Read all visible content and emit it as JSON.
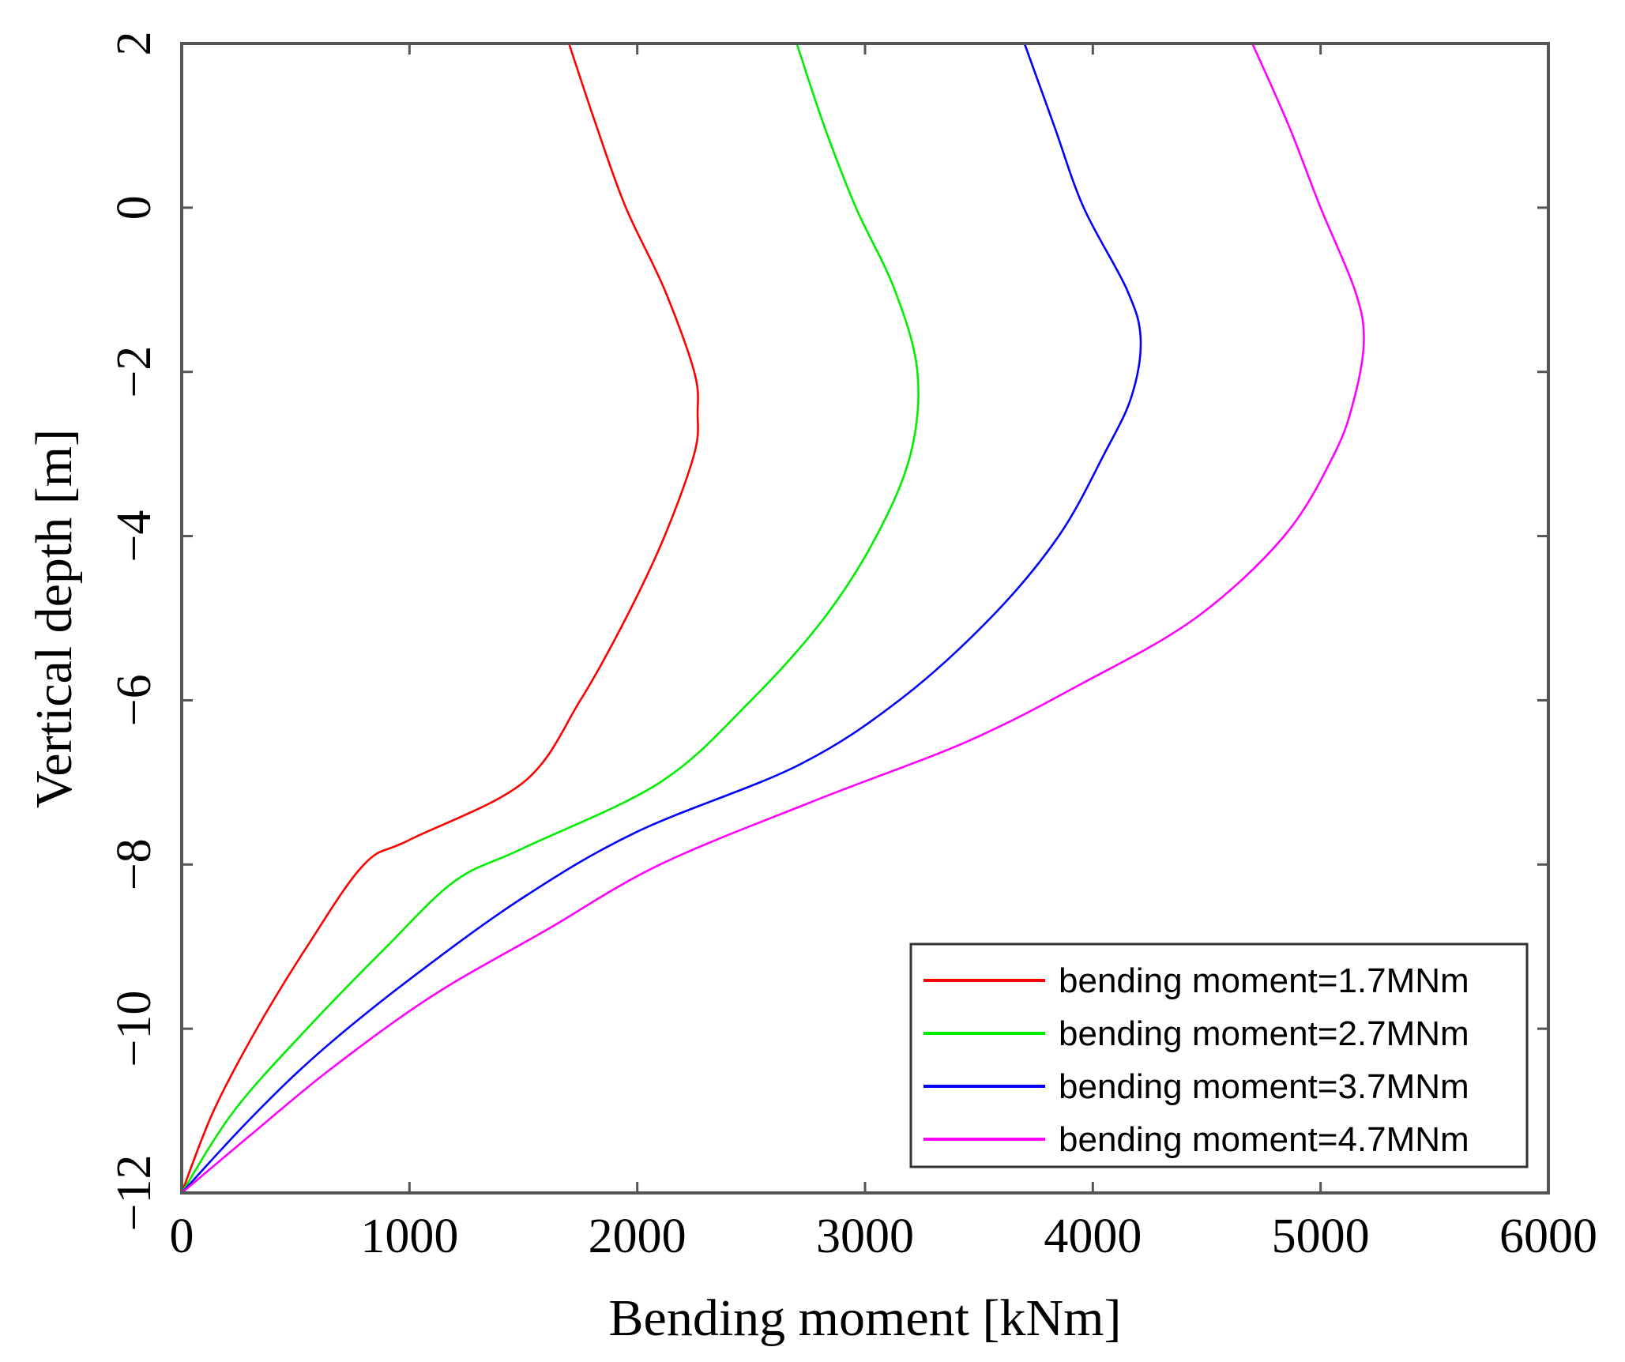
{
  "chart_data": {
    "type": "line",
    "xlabel": "Bending moment [kNm]",
    "ylabel": "Vertical depth [m]",
    "xlim": [
      0,
      6000
    ],
    "ylim": [
      -12,
      2
    ],
    "xticks": [
      0,
      1000,
      2000,
      3000,
      4000,
      5000,
      6000
    ],
    "yticks": [
      2,
      0,
      -2,
      -4,
      -6,
      -8,
      -10,
      -12
    ],
    "xtick_labels": [
      "0",
      "1000",
      "2000",
      "3000",
      "4000",
      "5000",
      "6000"
    ],
    "ytick_labels": [
      "2",
      "0",
      "−2",
      "−4",
      "−6",
      "−8",
      "−10",
      "−12"
    ],
    "grid": false,
    "legend_position": "bottom-right",
    "series": [
      {
        "name": "bending moment=1.7MNm",
        "color": "#ff0000",
        "points": [
          [
            1700,
            2
          ],
          [
            1820,
            1
          ],
          [
            1950,
            0
          ],
          [
            2120,
            -1
          ],
          [
            2250,
            -2
          ],
          [
            2265,
            -2.5
          ],
          [
            2250,
            -3
          ],
          [
            2120,
            -4
          ],
          [
            1950,
            -5
          ],
          [
            1750,
            -6
          ],
          [
            1500,
            -7
          ],
          [
            1000,
            -7.7
          ],
          [
            800,
            -8
          ],
          [
            550,
            -9
          ],
          [
            330,
            -10
          ],
          [
            140,
            -11
          ],
          [
            0,
            -12
          ]
        ]
      },
      {
        "name": "bending moment=2.7MNm",
        "color": "#00ee00",
        "points": [
          [
            2700,
            2
          ],
          [
            2820,
            1
          ],
          [
            2960,
            0
          ],
          [
            3130,
            -1
          ],
          [
            3230,
            -2
          ],
          [
            3200,
            -3
          ],
          [
            3050,
            -4
          ],
          [
            2820,
            -5
          ],
          [
            2500,
            -6
          ],
          [
            2100,
            -7
          ],
          [
            1500,
            -7.8
          ],
          [
            1200,
            -8.2
          ],
          [
            900,
            -9
          ],
          [
            550,
            -10
          ],
          [
            230,
            -11
          ],
          [
            0,
            -12
          ]
        ]
      },
      {
        "name": "bending moment=3.7MNm",
        "color": "#0000ff",
        "points": [
          [
            3700,
            2
          ],
          [
            3830,
            1
          ],
          [
            3960,
            0
          ],
          [
            4150,
            -1
          ],
          [
            4210,
            -1.6
          ],
          [
            4170,
            -2.3
          ],
          [
            4050,
            -3
          ],
          [
            3850,
            -4
          ],
          [
            3550,
            -5
          ],
          [
            3150,
            -6
          ],
          [
            2700,
            -6.8
          ],
          [
            2000,
            -7.6
          ],
          [
            1500,
            -8.4
          ],
          [
            1000,
            -9.4
          ],
          [
            600,
            -10.3
          ],
          [
            300,
            -11.1
          ],
          [
            0,
            -12
          ]
        ]
      },
      {
        "name": "bending moment=4.7MNm",
        "color": "#ff00ff",
        "points": [
          [
            4700,
            2
          ],
          [
            4860,
            1
          ],
          [
            5000,
            0
          ],
          [
            5150,
            -1
          ],
          [
            5190,
            -1.6
          ],
          [
            5150,
            -2.3
          ],
          [
            5060,
            -3
          ],
          [
            4840,
            -4
          ],
          [
            4450,
            -5
          ],
          [
            3950,
            -5.8
          ],
          [
            3450,
            -6.5
          ],
          [
            2800,
            -7.2
          ],
          [
            2100,
            -8
          ],
          [
            1600,
            -8.8
          ],
          [
            1100,
            -9.6
          ],
          [
            650,
            -10.5
          ],
          [
            300,
            -11.3
          ],
          [
            0,
            -12
          ]
        ]
      }
    ]
  }
}
